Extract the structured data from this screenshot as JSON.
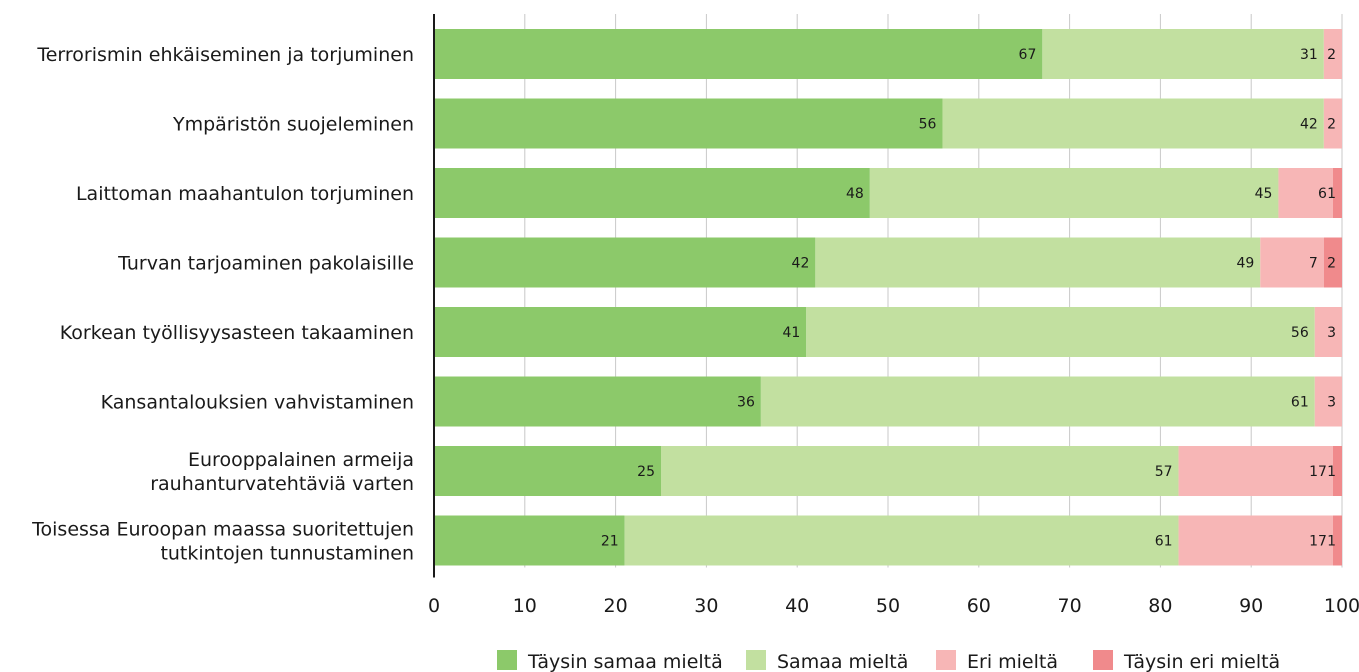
{
  "chart_data": {
    "type": "bar",
    "orientation": "horizontal",
    "stacked": true,
    "categories": [
      [
        "Terrorismin ehkäiseminen ja torjuminen"
      ],
      [
        "Ympäristön suojeleminen"
      ],
      [
        "Laittoman maahantulon torjuminen"
      ],
      [
        "Turvan tarjoaminen pakolaisille"
      ],
      [
        "Korkean työllisyysasteen takaaminen"
      ],
      [
        "Kansantalouksien vahvistaminen"
      ],
      [
        "Eurooppalainen armeija",
        "rauhanturvatehtäviä varten"
      ],
      [
        "Toisessa Euroopan maassa suoritettujen",
        "tutkintojen tunnustaminen"
      ]
    ],
    "series": [
      {
        "name": "Täysin samaa mieltä",
        "color": "#8cc96a",
        "values": [
          67,
          56,
          48,
          42,
          41,
          36,
          25,
          21
        ]
      },
      {
        "name": "Samaa mieltä",
        "color": "#c2e0a0",
        "values": [
          31,
          42,
          45,
          49,
          56,
          61,
          57,
          61
        ]
      },
      {
        "name": "Eri mieltä",
        "color": "#f7b6b6",
        "values": [
          2,
          2,
          6,
          7,
          3,
          3,
          17,
          17
        ]
      },
      {
        "name": "Täysin eri mieltä",
        "color": "#f08a8c",
        "values": [
          0,
          0,
          1,
          2,
          0,
          0,
          1,
          1
        ]
      }
    ],
    "xlim": [
      0,
      100
    ],
    "xticks": [
      0,
      10,
      20,
      30,
      40,
      50,
      60,
      70,
      80,
      90,
      100
    ],
    "grid": true,
    "legend_position": "bottom-right"
  }
}
